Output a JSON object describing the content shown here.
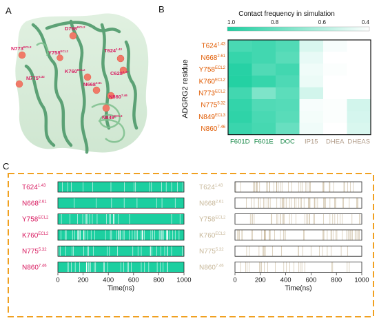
{
  "panels": {
    "a": "A",
    "b": "B",
    "c": "C"
  },
  "structure": {
    "labels": [
      {
        "id": "D768",
        "text": "D768",
        "sup": "ECL2"
      },
      {
        "id": "T624",
        "text": "T624",
        "sup": "1.43"
      },
      {
        "id": "N773",
        "text": "N773",
        "sup": "ECL2"
      },
      {
        "id": "Y758",
        "text": "Y758",
        "sup": "ECL2"
      },
      {
        "id": "C628",
        "text": "C628",
        "sup": "1.47"
      },
      {
        "id": "N775",
        "text": "N775",
        "sup": "5.32"
      },
      {
        "id": "K760",
        "text": "K760",
        "sup": "ECL2"
      },
      {
        "id": "N668",
        "text": "N668",
        "sup": "2.61"
      },
      {
        "id": "N860",
        "text": "N860",
        "sup": "7.46"
      },
      {
        "id": "N849",
        "text": "N849",
        "sup": "ECL3"
      }
    ]
  },
  "chart_data": [
    {
      "type": "heatmap",
      "title": "Contact frequency in simulation",
      "ylabel": "ADGRG2 residue",
      "colorbar": {
        "min": 0.4,
        "max": 1.0,
        "ticks": [
          "1.0",
          "0.8",
          "0.6",
          "0.4"
        ],
        "high_color": "#1ccfa0",
        "low_color": "#ffffff"
      },
      "columns": [
        {
          "label": "F601D",
          "color": "#1a8a4a"
        },
        {
          "label": "F601E",
          "color": "#1a8a4a"
        },
        {
          "label": "DOC",
          "color": "#1a8a4a"
        },
        {
          "label": "IP15",
          "color": "#b29d8a"
        },
        {
          "label": "DHEA",
          "color": "#b29d8a"
        },
        {
          "label": "DHEAS",
          "color": "#b29d8a"
        }
      ],
      "rows": [
        {
          "res": "T624",
          "sup": "1.43"
        },
        {
          "res": "N668",
          "sup": "2.61"
        },
        {
          "res": "Y758",
          "sup": "ECL2"
        },
        {
          "res": "K760",
          "sup": "ECL2"
        },
        {
          "res": "N773",
          "sup": "ECL2"
        },
        {
          "res": "N775",
          "sup": "5.32"
        },
        {
          "res": "N849",
          "sup": "ECL3"
        },
        {
          "res": "N860",
          "sup": "7.46"
        }
      ],
      "row_label_color": "#e05a00",
      "values": [
        [
          0.88,
          0.9,
          0.86,
          0.5,
          0.42,
          0.4
        ],
        [
          0.93,
          0.9,
          0.84,
          0.46,
          0.4,
          0.4
        ],
        [
          0.97,
          0.86,
          0.9,
          0.44,
          0.41,
          0.4
        ],
        [
          0.98,
          0.93,
          0.87,
          0.45,
          0.4,
          0.4
        ],
        [
          0.9,
          0.74,
          0.83,
          0.52,
          0.4,
          0.4
        ],
        [
          0.94,
          0.86,
          0.85,
          0.42,
          0.41,
          0.52
        ],
        [
          0.95,
          0.88,
          0.84,
          0.43,
          0.41,
          0.51
        ],
        [
          0.92,
          0.89,
          0.8,
          0.44,
          0.4,
          0.5
        ]
      ]
    },
    {
      "type": "barcode",
      "xlabel": "Time(ns)",
      "xlim": [
        0,
        1000
      ],
      "xticks": [
        0,
        200,
        400,
        600,
        800,
        1000
      ],
      "frame_color": "#f0a020",
      "left": {
        "fill_color": "#1ccfa0",
        "label_color": "#d81b60",
        "rows": [
          {
            "res": "T624",
            "sup": "1.43",
            "occupancy": 0.95
          },
          {
            "res": "N668",
            "sup": "2.61",
            "occupancy": 0.97
          },
          {
            "res": "Y758",
            "sup": "ECL2",
            "occupancy": 0.96
          },
          {
            "res": "K760",
            "sup": "ECL2",
            "occupancy": 0.88
          },
          {
            "res": "N775",
            "sup": "5.32",
            "occupancy": 0.95
          },
          {
            "res": "N860",
            "sup": "7.46",
            "occupancy": 0.93
          }
        ]
      },
      "right": {
        "fill_color": "#c8b89a",
        "label_color": "#c8b89a",
        "rows": [
          {
            "res": "T624",
            "sup": "1.43",
            "occupancy": 0.1
          },
          {
            "res": "N668",
            "sup": "2.61",
            "occupancy": 0.13
          },
          {
            "res": "Y758",
            "sup": "ECL2",
            "occupancy": 0.08
          },
          {
            "res": "K760",
            "sup": "ECL2",
            "occupancy": 0.11
          },
          {
            "res": "N775",
            "sup": "5.32",
            "occupancy": 0.06
          },
          {
            "res": "N860",
            "sup": "7.46",
            "occupancy": 0.05
          }
        ]
      }
    }
  ]
}
